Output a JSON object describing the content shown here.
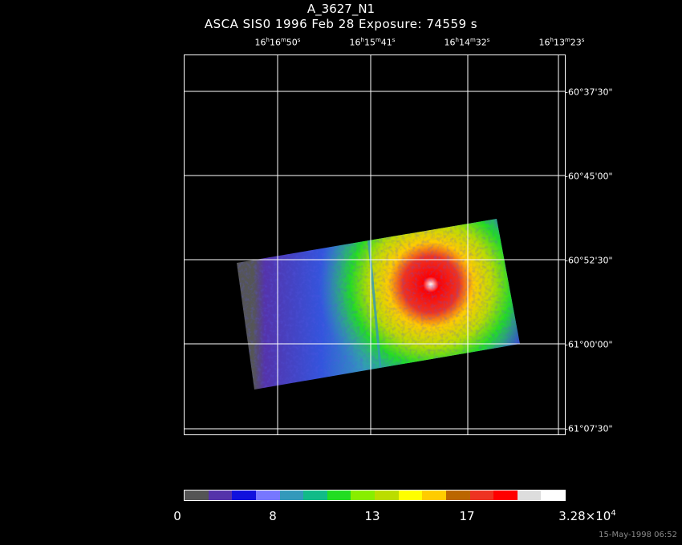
{
  "header": {
    "object_name": "A_3627_N1",
    "observation_info": "ASCA SIS0    1996 Feb 28    Exposure: 74559 s"
  },
  "ra_labels": [
    {
      "h": "16",
      "m": "16",
      "s": "50"
    },
    {
      "h": "16",
      "m": "15",
      "s": "41"
    },
    {
      "h": "16",
      "m": "14",
      "s": "32"
    },
    {
      "h": "16",
      "m": "13",
      "s": "23"
    }
  ],
  "dec_labels": [
    "-60°37'30\"",
    "-60°45'00\"",
    "-60°52'30\"",
    "-61°00'00\"",
    "-61°07'30\""
  ],
  "colorbar": {
    "colors": [
      "#555555",
      "#5533aa",
      "#1111dd",
      "#7777ff",
      "#3399bb",
      "#11bb88",
      "#22dd22",
      "#88ee00",
      "#bbdd00",
      "#ffff00",
      "#ffcc00",
      "#bb6600",
      "#ee3322",
      "#ff0000",
      "#dddddd",
      "#ffffff"
    ],
    "tick_labels": [
      "0",
      "8",
      "13",
      "17",
      "3.28×10"
    ],
    "max_exponent": "4"
  },
  "footer": {
    "timestamp": "15-May-1998 06:52"
  }
}
